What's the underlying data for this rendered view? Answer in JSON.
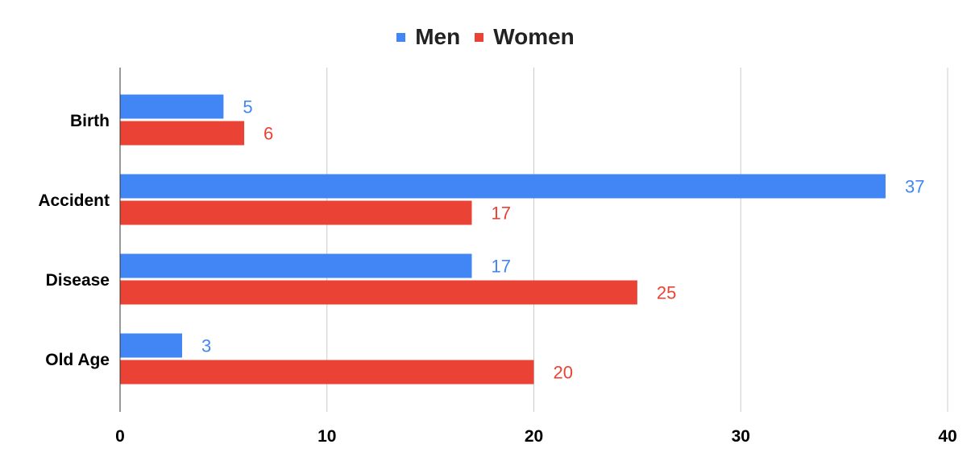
{
  "chart_data": {
    "type": "bar",
    "orientation": "horizontal",
    "title": "",
    "xlabel": "",
    "ylabel": "",
    "categories": [
      "Birth",
      "Accident",
      "Disease",
      "Old Age"
    ],
    "series": [
      {
        "name": "Men",
        "color": "#4285f4",
        "values": [
          5,
          37,
          17,
          3
        ]
      },
      {
        "name": "Women",
        "color": "#ea4335",
        "values": [
          6,
          17,
          25,
          20
        ]
      }
    ],
    "xlim": [
      0,
      40
    ],
    "xticks": [
      "0",
      "10",
      "20",
      "30",
      "40"
    ],
    "grid": true,
    "legend_position": "top",
    "data_labels": true
  }
}
